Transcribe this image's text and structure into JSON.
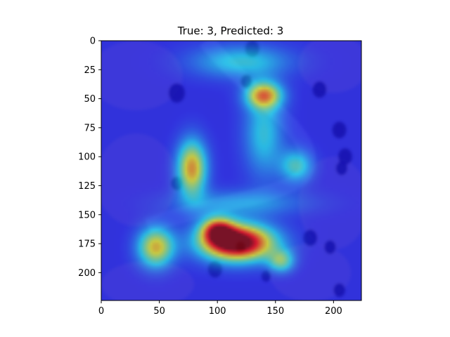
{
  "chart_data": {
    "type": "heatmap",
    "title": "True: 3, Predicted: 3",
    "image_size": [
      224,
      224
    ],
    "xlim": [
      0,
      224
    ],
    "ylim": [
      224,
      0
    ],
    "x_ticks": [
      0,
      50,
      100,
      150,
      200
    ],
    "y_ticks": [
      0,
      25,
      50,
      75,
      100,
      125,
      150,
      175,
      200
    ],
    "colormap": "jet",
    "base_color": "#5d5fc0",
    "tissue_colors": {
      "cytoplasm": "#9a7fb8",
      "nucleus": "#2d2470",
      "fiber": "#7d88d8"
    },
    "nuclei": [
      {
        "x": 65,
        "y": 45,
        "r": 7
      },
      {
        "x": 130,
        "y": 7,
        "r": 6
      },
      {
        "x": 125,
        "y": 35,
        "r": 5
      },
      {
        "x": 188,
        "y": 42,
        "r": 6
      },
      {
        "x": 205,
        "y": 77,
        "r": 6
      },
      {
        "x": 210,
        "y": 100,
        "r": 6
      },
      {
        "x": 207,
        "y": 110,
        "r": 5
      },
      {
        "x": 65,
        "y": 123,
        "r": 5
      },
      {
        "x": 180,
        "y": 170,
        "r": 6
      },
      {
        "x": 197,
        "y": 178,
        "r": 5
      },
      {
        "x": 98,
        "y": 197,
        "r": 6
      },
      {
        "x": 142,
        "y": 203,
        "r": 4
      },
      {
        "x": 205,
        "y": 215,
        "r": 5
      },
      {
        "x": 120,
        "y": 178,
        "r": 4
      }
    ],
    "activation_peaks": [
      {
        "x": 117,
        "y": 174,
        "sx": 22,
        "sy": 11,
        "intensity": 1.0
      },
      {
        "x": 100,
        "y": 163,
        "sx": 10,
        "sy": 8,
        "intensity": 0.55
      },
      {
        "x": 78,
        "y": 110,
        "sx": 9,
        "sy": 17,
        "intensity": 0.6
      },
      {
        "x": 47,
        "y": 178,
        "sx": 11,
        "sy": 12,
        "intensity": 0.55
      },
      {
        "x": 140,
        "y": 47,
        "sx": 11,
        "sy": 8,
        "intensity": 0.55
      },
      {
        "x": 155,
        "y": 190,
        "sx": 8,
        "sy": 7,
        "intensity": 0.35
      },
      {
        "x": 120,
        "y": 18,
        "sx": 30,
        "sy": 10,
        "intensity": 0.28
      },
      {
        "x": 140,
        "y": 80,
        "sx": 12,
        "sy": 26,
        "intensity": 0.28
      },
      {
        "x": 168,
        "y": 108,
        "sx": 10,
        "sy": 10,
        "intensity": 0.32
      },
      {
        "x": 120,
        "y": 140,
        "sx": 40,
        "sy": 8,
        "intensity": 0.2
      }
    ]
  }
}
